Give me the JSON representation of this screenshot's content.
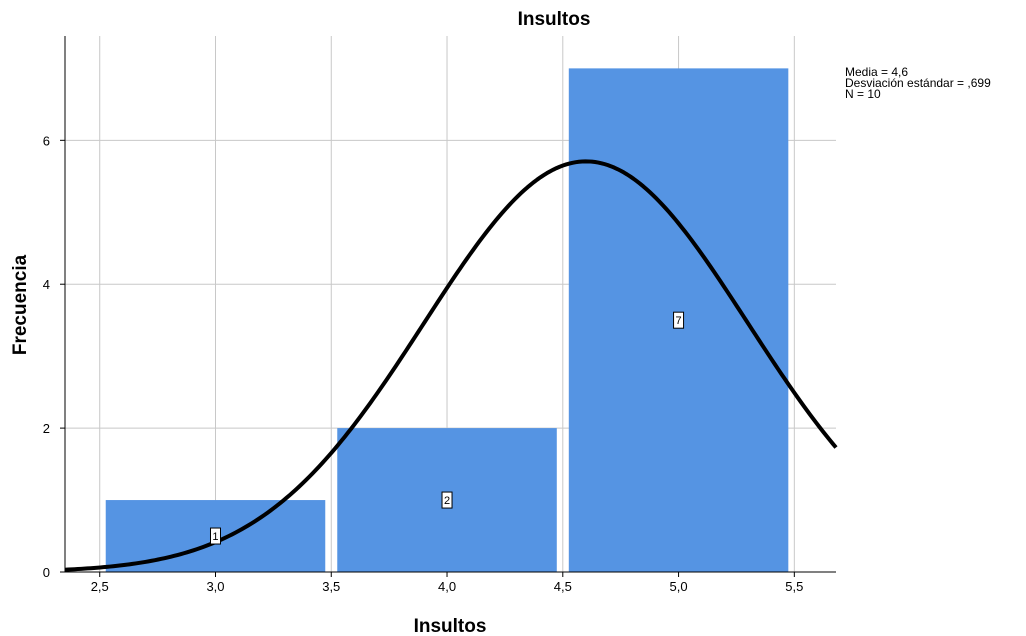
{
  "chart_data": {
    "type": "bar",
    "title": "Insultos",
    "xlabel": "Insultos",
    "ylabel": "Frecuencia",
    "xlim": [
      2.35,
      5.68
    ],
    "ylim": [
      0,
      7.45
    ],
    "x_ticks": [
      2.5,
      3.0,
      3.5,
      4.0,
      4.5,
      5.0,
      5.5
    ],
    "x_tick_labels": [
      "2,5",
      "3,0",
      "3,5",
      "4,0",
      "4,5",
      "5,0",
      "5,5"
    ],
    "y_ticks": [
      0,
      2,
      4,
      6
    ],
    "y_tick_labels": [
      "0",
      "2",
      "4",
      "6"
    ],
    "grid": true,
    "bars": [
      {
        "x": 3.0,
        "from": 2.5,
        "to": 3.5,
        "value": 1,
        "label": "1"
      },
      {
        "x": 4.0,
        "from": 3.5,
        "to": 4.5,
        "value": 2,
        "label": "2"
      },
      {
        "x": 5.0,
        "from": 4.5,
        "to": 5.5,
        "value": 7,
        "label": "7"
      }
    ],
    "bar_color": "#5594e3",
    "normal_curve": {
      "mean": 4.6,
      "sd": 0.699,
      "n": 10,
      "bin_width": 1,
      "color": "#000000"
    },
    "stats_legend": {
      "placement": "top-right",
      "lines": [
        "Media = 4,6",
        "Desviación estándar = ,699",
        "N = 10"
      ]
    }
  }
}
